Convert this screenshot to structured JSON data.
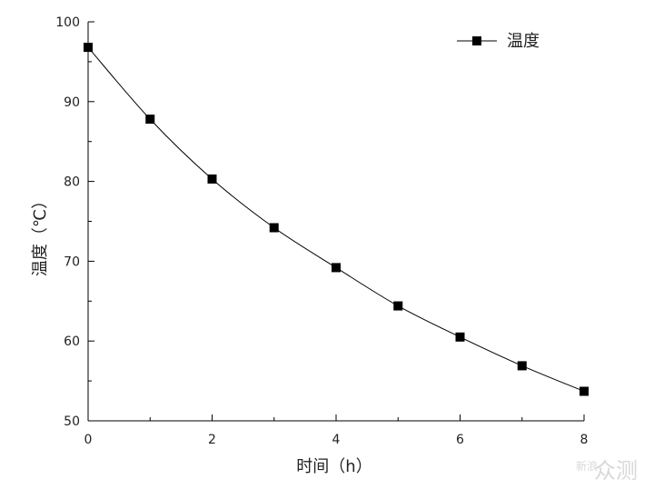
{
  "chart_data": {
    "type": "line",
    "xlabel": "时间（h）",
    "ylabel": "温度（℃）",
    "xlim": [
      0,
      8
    ],
    "ylim": [
      50,
      100
    ],
    "xticks": [
      "0",
      "2",
      "4",
      "6",
      "8"
    ],
    "yticks": [
      "50",
      "60",
      "70",
      "80",
      "90",
      "100"
    ],
    "grid": false,
    "legend_position": "top-right",
    "series": [
      {
        "name": "温度",
        "marker": "square",
        "color": "#000000",
        "x": [
          0,
          1,
          2,
          3,
          4,
          5,
          6,
          7,
          8
        ],
        "y": [
          96.8,
          87.8,
          80.3,
          74.2,
          69.2,
          64.4,
          60.5,
          56.9,
          53.7
        ]
      }
    ]
  },
  "watermark": {
    "small": "新浪",
    "large": "众测"
  }
}
